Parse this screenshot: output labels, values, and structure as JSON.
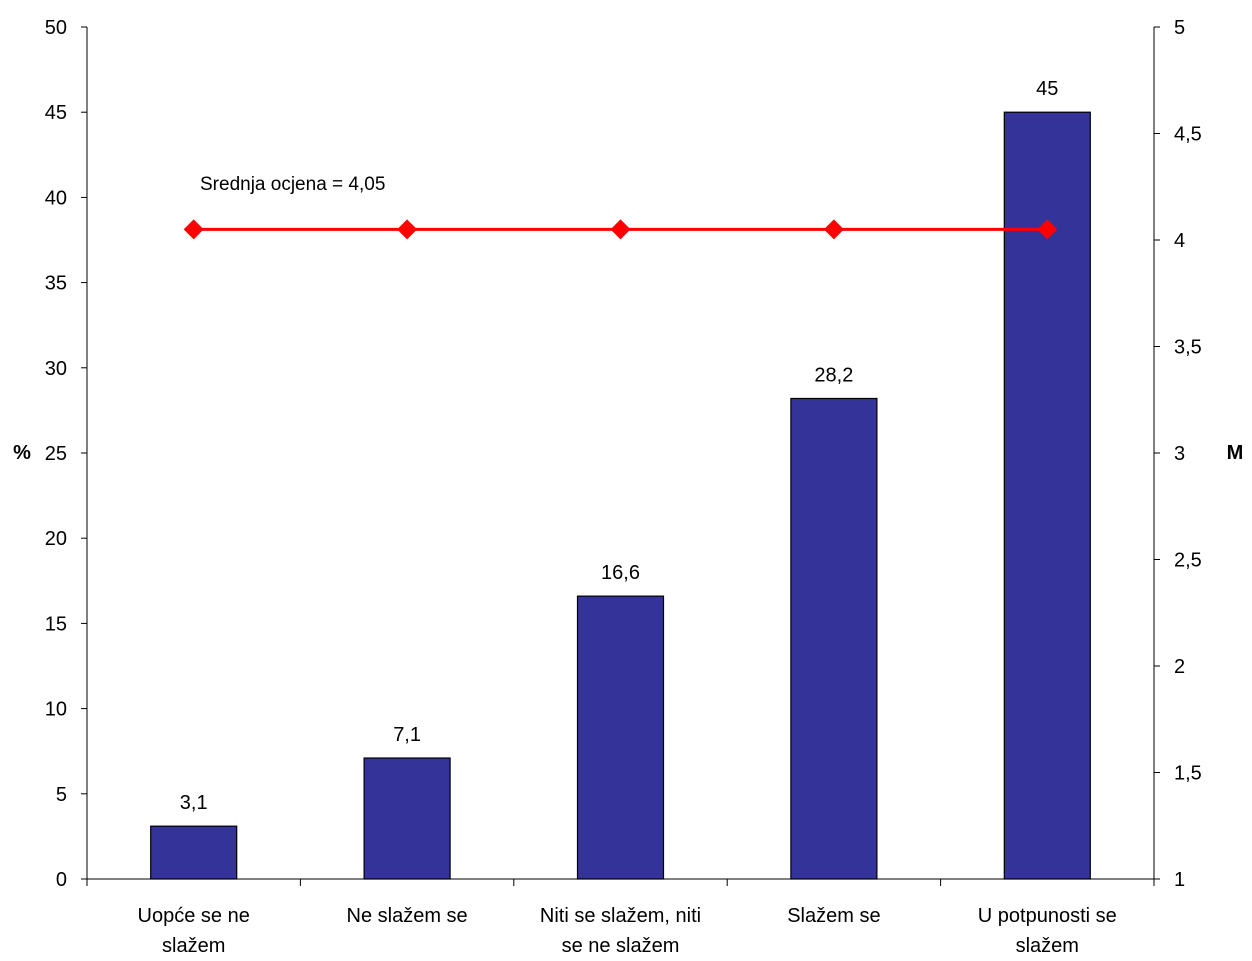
{
  "chart_data": {
    "type": "bar",
    "categories": [
      [
        "Uopće se ne",
        "slažem"
      ],
      [
        "Ne slažem se"
      ],
      [
        "Niti se slažem, niti",
        "se ne slažem"
      ],
      [
        "Slažem se"
      ],
      [
        "U potpunosti se",
        "slažem"
      ]
    ],
    "values": [
      3.1,
      7.1,
      16.6,
      28.2,
      45
    ],
    "value_labels": [
      "3,1",
      "7,1",
      "16,6",
      "28,2",
      "45"
    ],
    "bar_color": "#333399",
    "ylabel": "%",
    "ylim": [
      0,
      50
    ],
    "yticks": [
      0,
      5,
      10,
      15,
      20,
      25,
      30,
      35,
      40,
      45,
      50
    ],
    "ytick_labels": [
      "0",
      "5",
      "10",
      "15",
      "20",
      "25",
      "30",
      "35",
      "40",
      "45",
      "50"
    ],
    "y2label": "M",
    "y2lim": [
      1,
      5
    ],
    "y2ticks": [
      1,
      1.5,
      2,
      2.5,
      3,
      3.5,
      4,
      4.5,
      5
    ],
    "y2tick_labels": [
      "1",
      "1,5",
      "2",
      "2,5",
      "3",
      "3,5",
      "4",
      "4,5",
      "5"
    ],
    "line_series": {
      "axis": "right",
      "values": [
        4.05,
        4.05,
        4.05,
        4.05,
        4.05
      ],
      "color": "#ff0000",
      "marker": "diamond"
    },
    "annotation": "Srednja ocjena = 4,05",
    "grid": false,
    "legend": "none"
  }
}
